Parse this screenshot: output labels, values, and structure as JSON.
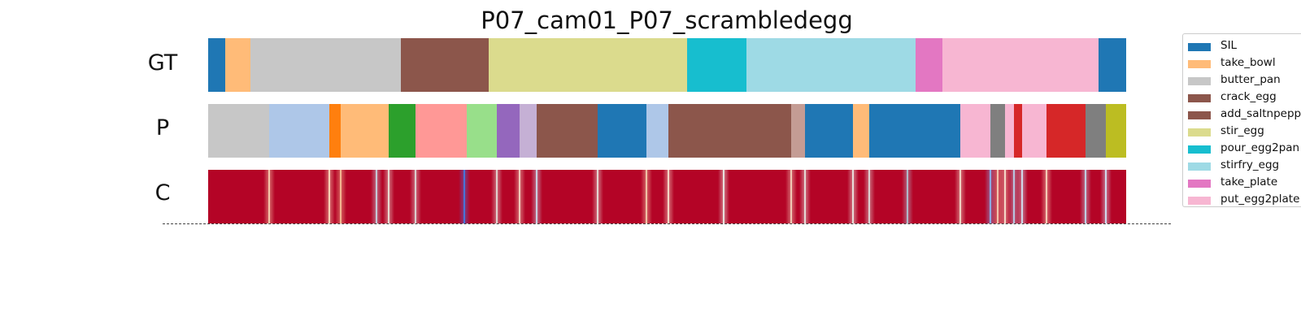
{
  "chart_data": {
    "type": "segmentation-timeline",
    "title": "P07_cam01_P07_scrambledegg",
    "rows": [
      {
        "label": "GT",
        "segments": [
          {
            "start": 0,
            "end": 1.9,
            "color": "#1f77b4",
            "label": "SIL"
          },
          {
            "start": 1.9,
            "end": 4.6,
            "color": "#ffbb78",
            "label": "take_bowl"
          },
          {
            "start": 4.6,
            "end": 21.0,
            "color": "#c7c7c7",
            "label": "butter_pan"
          },
          {
            "start": 21.0,
            "end": 30.6,
            "color": "#8c564b",
            "label": "crack_egg"
          },
          {
            "start": 30.6,
            "end": 52.2,
            "color": "#dbdb8d",
            "label": "stir_egg"
          },
          {
            "start": 52.2,
            "end": 58.6,
            "color": "#17becf",
            "label": "pour_egg2pan"
          },
          {
            "start": 58.6,
            "end": 77.1,
            "color": "#9edae5",
            "label": "stirfry_egg"
          },
          {
            "start": 77.1,
            "end": 80.0,
            "color": "#e377c2",
            "label": "take_plate"
          },
          {
            "start": 80.0,
            "end": 97.0,
            "color": "#f7b6d2",
            "label": "put_egg2plate"
          },
          {
            "start": 97.0,
            "end": 100,
            "color": "#1f77b4",
            "label": "SIL"
          }
        ]
      },
      {
        "label": "P",
        "segments": [
          {
            "start": 0,
            "end": 6.6,
            "color": "#c7c7c7"
          },
          {
            "start": 6.6,
            "end": 13.2,
            "color": "#aec7e8"
          },
          {
            "start": 13.2,
            "end": 14.4,
            "color": "#ff7f0e"
          },
          {
            "start": 14.4,
            "end": 19.7,
            "color": "#ffbb78"
          },
          {
            "start": 19.7,
            "end": 22.6,
            "color": "#2ca02c"
          },
          {
            "start": 22.6,
            "end": 28.2,
            "color": "#ff9896"
          },
          {
            "start": 28.2,
            "end": 31.4,
            "color": "#98df8a"
          },
          {
            "start": 31.4,
            "end": 33.9,
            "color": "#9467bd"
          },
          {
            "start": 33.9,
            "end": 35.8,
            "color": "#c5b0d5"
          },
          {
            "start": 35.8,
            "end": 42.4,
            "color": "#8c564b"
          },
          {
            "start": 42.4,
            "end": 47.7,
            "color": "#1f77b4"
          },
          {
            "start": 47.7,
            "end": 50.1,
            "color": "#aec7e8"
          },
          {
            "start": 50.1,
            "end": 63.5,
            "color": "#8c564b"
          },
          {
            "start": 63.5,
            "end": 65.0,
            "color": "#c49c94"
          },
          {
            "start": 65.0,
            "end": 70.2,
            "color": "#1f77b4"
          },
          {
            "start": 70.2,
            "end": 72.0,
            "color": "#ffbb78"
          },
          {
            "start": 72.0,
            "end": 81.9,
            "color": "#1f77b4"
          },
          {
            "start": 81.9,
            "end": 85.2,
            "color": "#f7b6d2"
          },
          {
            "start": 85.2,
            "end": 86.8,
            "color": "#7f7f7f"
          },
          {
            "start": 86.8,
            "end": 87.8,
            "color": "#f7b6d2"
          },
          {
            "start": 87.8,
            "end": 88.7,
            "color": "#d62728"
          },
          {
            "start": 88.7,
            "end": 91.3,
            "color": "#f7b6d2"
          },
          {
            "start": 91.3,
            "end": 95.6,
            "color": "#d62728"
          },
          {
            "start": 95.6,
            "end": 97.8,
            "color": "#7f7f7f"
          },
          {
            "start": 97.8,
            "end": 100,
            "color": "#bcbd22"
          }
        ]
      },
      {
        "label": "C",
        "type": "confidence",
        "base_color": "#b40426",
        "boundaries": [
          {
            "pos": 6.6,
            "color": "#f4c6a8"
          },
          {
            "pos": 13.2,
            "color": "#f7d0b4"
          },
          {
            "pos": 14.4,
            "color": "#f2b48f"
          },
          {
            "pos": 18.3,
            "color": "#c5c8d6"
          },
          {
            "pos": 19.7,
            "color": "#e8d8d0"
          },
          {
            "pos": 22.6,
            "color": "#dccccc"
          },
          {
            "pos": 27.9,
            "color": "#4a72d8"
          },
          {
            "pos": 31.4,
            "color": "#e0d0cc"
          },
          {
            "pos": 33.9,
            "color": "#f0c8b8"
          },
          {
            "pos": 35.8,
            "color": "#c8d0e0"
          },
          {
            "pos": 42.4,
            "color": "#e4d4d0"
          },
          {
            "pos": 47.7,
            "color": "#f0c0a4"
          },
          {
            "pos": 50.1,
            "color": "#f4d4c4"
          },
          {
            "pos": 56.2,
            "color": "#e8e0dc"
          },
          {
            "pos": 63.5,
            "color": "#f0c8b4"
          },
          {
            "pos": 65.0,
            "color": "#e4d8d4"
          },
          {
            "pos": 70.2,
            "color": "#e8dcd8"
          },
          {
            "pos": 72.0,
            "color": "#dcd0d0"
          },
          {
            "pos": 76.2,
            "color": "#b0b8c8"
          },
          {
            "pos": 81.9,
            "color": "#f0d0c0"
          },
          {
            "pos": 85.2,
            "color": "#8ea8e0"
          },
          {
            "pos": 86.0,
            "color": "#f0c4ac"
          },
          {
            "pos": 86.8,
            "color": "#f4d6c6"
          },
          {
            "pos": 87.8,
            "color": "#b8c4de"
          },
          {
            "pos": 88.7,
            "color": "#d0d8e8"
          },
          {
            "pos": 91.3,
            "color": "#f4cab4"
          },
          {
            "pos": 95.6,
            "color": "#c0cce0"
          },
          {
            "pos": 97.8,
            "color": "#d0d8ec"
          }
        ]
      }
    ],
    "legend": {
      "position": "right",
      "items": [
        {
          "label": "SIL",
          "color": "#1f77b4"
        },
        {
          "label": "take_bowl",
          "color": "#ffbb78"
        },
        {
          "label": "butter_pan",
          "color": "#c7c7c7"
        },
        {
          "label": "crack_egg",
          "color": "#8c564b"
        },
        {
          "label": "add_saltnpepper",
          "color": "#8c564b"
        },
        {
          "label": "stir_egg",
          "color": "#dbdb8d"
        },
        {
          "label": "pour_egg2pan",
          "color": "#17becf"
        },
        {
          "label": "stirfry_egg",
          "color": "#9edae5"
        },
        {
          "label": "take_plate",
          "color": "#e377c2"
        },
        {
          "label": "put_egg2plate",
          "color": "#f7b6d2"
        }
      ]
    }
  }
}
